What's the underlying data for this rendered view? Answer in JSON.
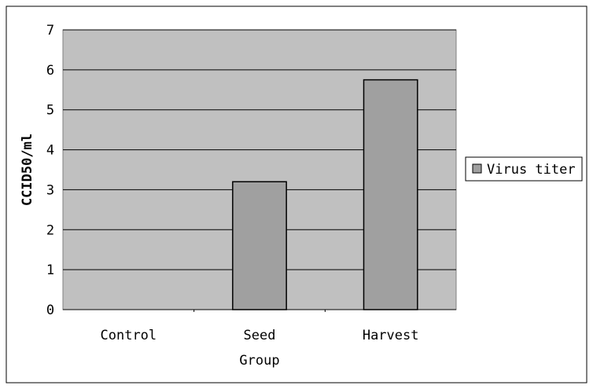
{
  "chart_data": {
    "type": "bar",
    "categories": [
      "Control",
      "Seed",
      "Harvest"
    ],
    "series": [
      {
        "name": "Virus titer",
        "values": [
          0,
          3.2,
          5.75
        ]
      }
    ],
    "xlabel": "Group",
    "ylabel": "CCID50/ml",
    "ylim": [
      0,
      7
    ],
    "yticks": [
      "0",
      "1",
      "2",
      "3",
      "4",
      "5",
      "6",
      "7"
    ],
    "grid": true,
    "legend_position": "right",
    "colors": {
      "plot_background": "#c0c0c0",
      "bar_fill": "#a0a0a0",
      "bar_stroke": "#000000",
      "gridline": "#000000"
    }
  }
}
